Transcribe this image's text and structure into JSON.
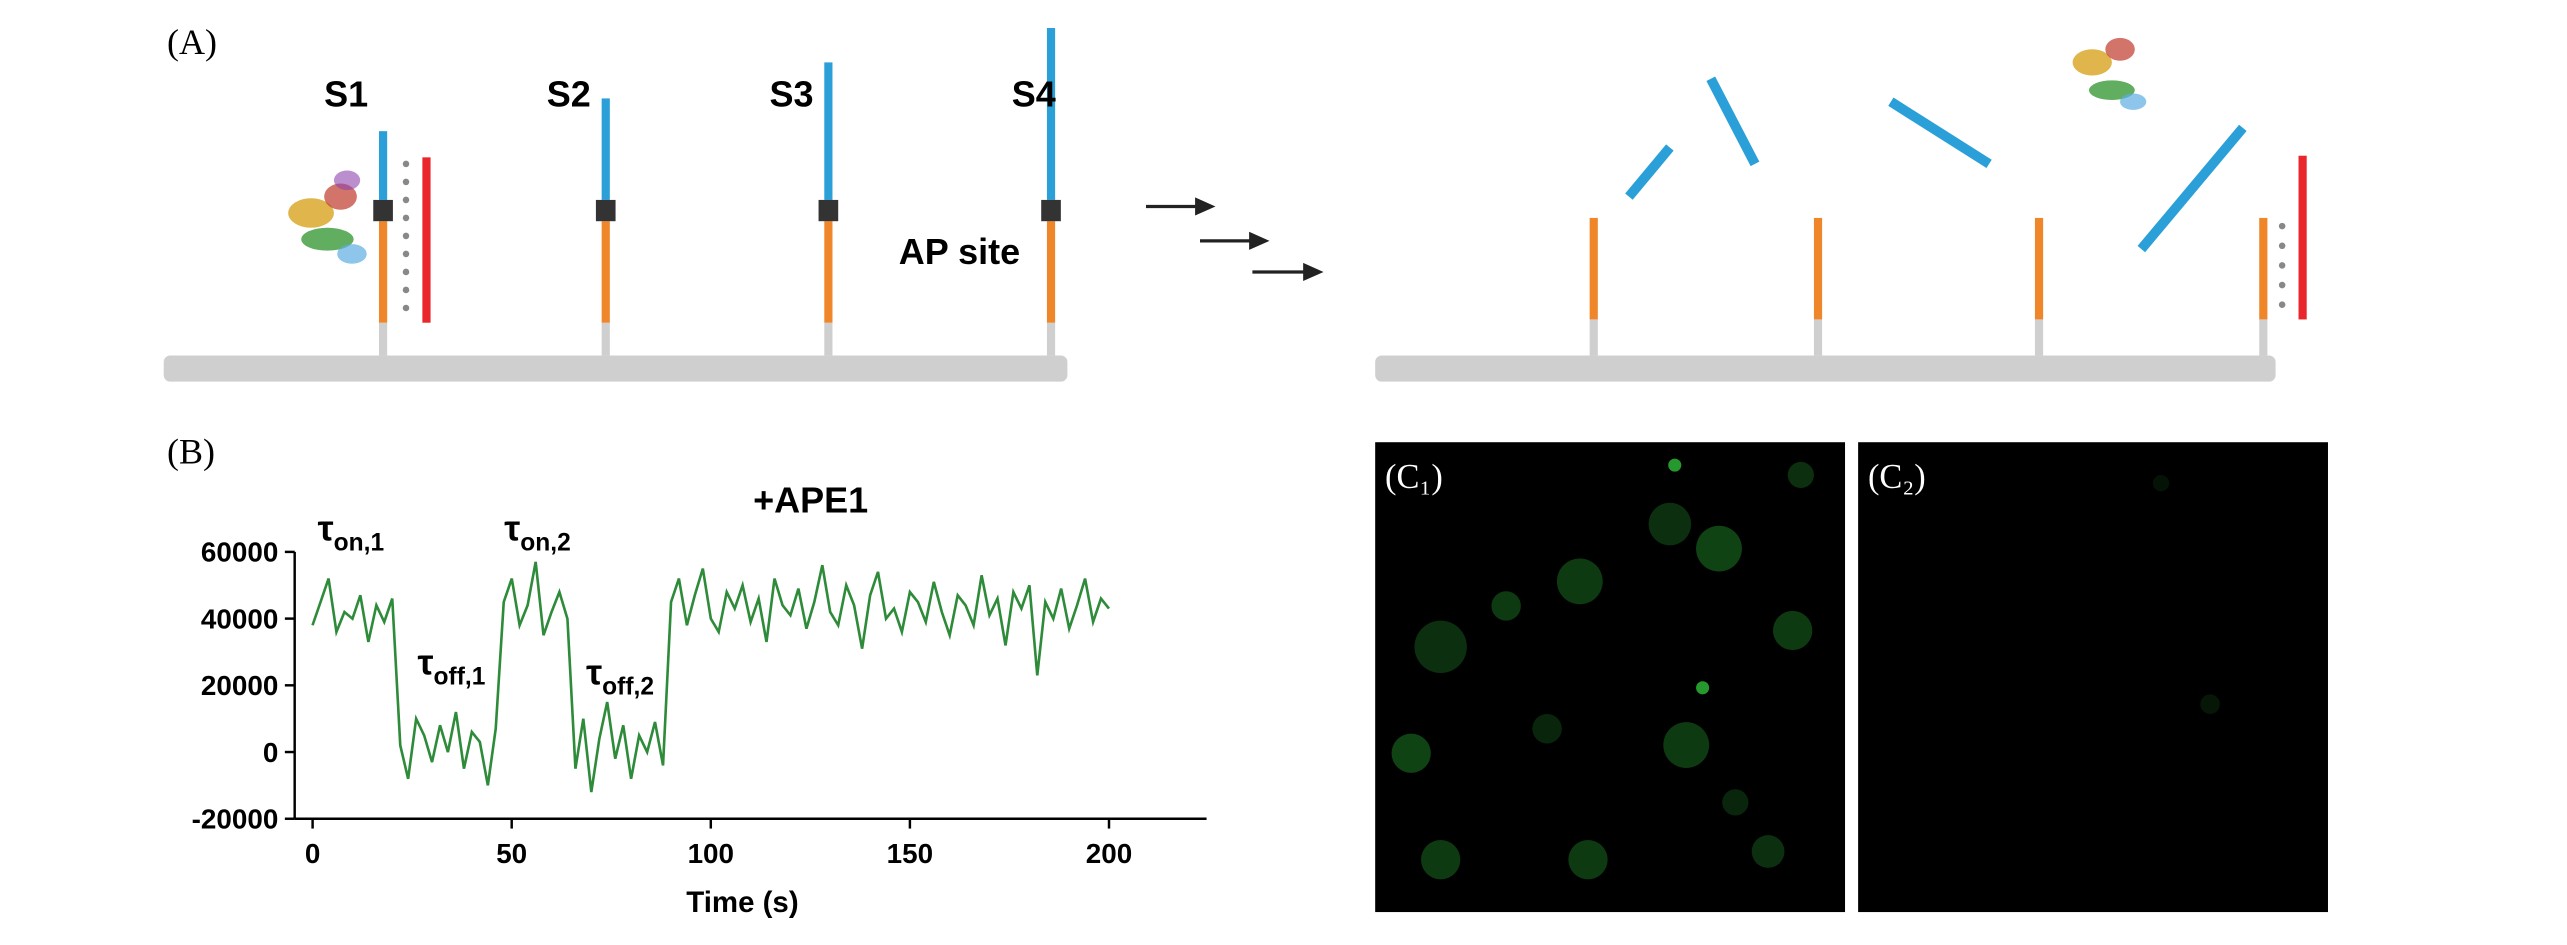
{
  "panel_a": {
    "label": "(A)",
    "strands": [
      "S1",
      "S2",
      "S3",
      "S4"
    ],
    "site_label": "AP site"
  },
  "panel_b": {
    "label": "(B)",
    "chart_data": {
      "type": "line",
      "x_label": "Time (s)",
      "color": "#2e8b3a",
      "annotations": [
        {
          "text": "τ",
          "sub": "on,1"
        },
        {
          "text": "τ",
          "sub": "off,1"
        },
        {
          "text": "τ",
          "sub": "on,2"
        },
        {
          "text": "τ",
          "sub": "off,2"
        },
        {
          "text": "+APE1"
        }
      ],
      "x": [
        0,
        2,
        4,
        6,
        8,
        10,
        12,
        14,
        16,
        18,
        20,
        22,
        24,
        26,
        28,
        30,
        32,
        34,
        36,
        38,
        40,
        42,
        44,
        46,
        48,
        50,
        52,
        54,
        56,
        58,
        60,
        62,
        64,
        66,
        68,
        70,
        72,
        74,
        76,
        78,
        80,
        82,
        84,
        86,
        88,
        90,
        92,
        94,
        96,
        98,
        100,
        102,
        104,
        106,
        108,
        110,
        112,
        114,
        116,
        118,
        120,
        122,
        124,
        126,
        128,
        130,
        132,
        134,
        136,
        138,
        140,
        142,
        144,
        146,
        148,
        150,
        152,
        154,
        156,
        158,
        160,
        162,
        164,
        166,
        168,
        170,
        172,
        174,
        176,
        178,
        180,
        182,
        184,
        186,
        188,
        190,
        192,
        194,
        196,
        198,
        200
      ],
      "values": [
        38000,
        45000,
        52000,
        36000,
        42000,
        40000,
        47000,
        33000,
        44000,
        39000,
        46000,
        2000,
        -8000,
        10000,
        5000,
        -3000,
        8000,
        0,
        12000,
        -5000,
        6000,
        3000,
        -10000,
        7000,
        45000,
        52000,
        38000,
        44000,
        57000,
        35000,
        42000,
        48000,
        40000,
        -5000,
        10000,
        -12000,
        4000,
        15000,
        -2000,
        8000,
        -8000,
        5000,
        0,
        9000,
        -4000,
        45000,
        52000,
        38000,
        47000,
        55000,
        40000,
        36000,
        48000,
        43000,
        50000,
        39000,
        46000,
        33000,
        52000,
        44000,
        41000,
        49000,
        37000,
        45000,
        56000,
        42000,
        38000,
        50000,
        44000,
        31000,
        47000,
        54000,
        40000,
        43000,
        36000,
        48000,
        45000,
        39000,
        51000,
        42000,
        35000,
        47000,
        44000,
        38000,
        53000,
        41000,
        46000,
        32000,
        48000,
        43000,
        50000,
        23000,
        45000,
        40000,
        49000,
        37000,
        44000,
        52000,
        39000,
        46000,
        43000
      ],
      "xlim": [
        -4.5,
        224.5
      ],
      "ylim": [
        -20000,
        60000
      ],
      "xticks": [
        0,
        50,
        100,
        150,
        200
      ],
      "yticks": [
        -20000,
        0,
        20000,
        40000,
        60000
      ]
    }
  },
  "panel_c": {
    "images": [
      "(C₁)",
      "(C₂)"
    ]
  }
}
